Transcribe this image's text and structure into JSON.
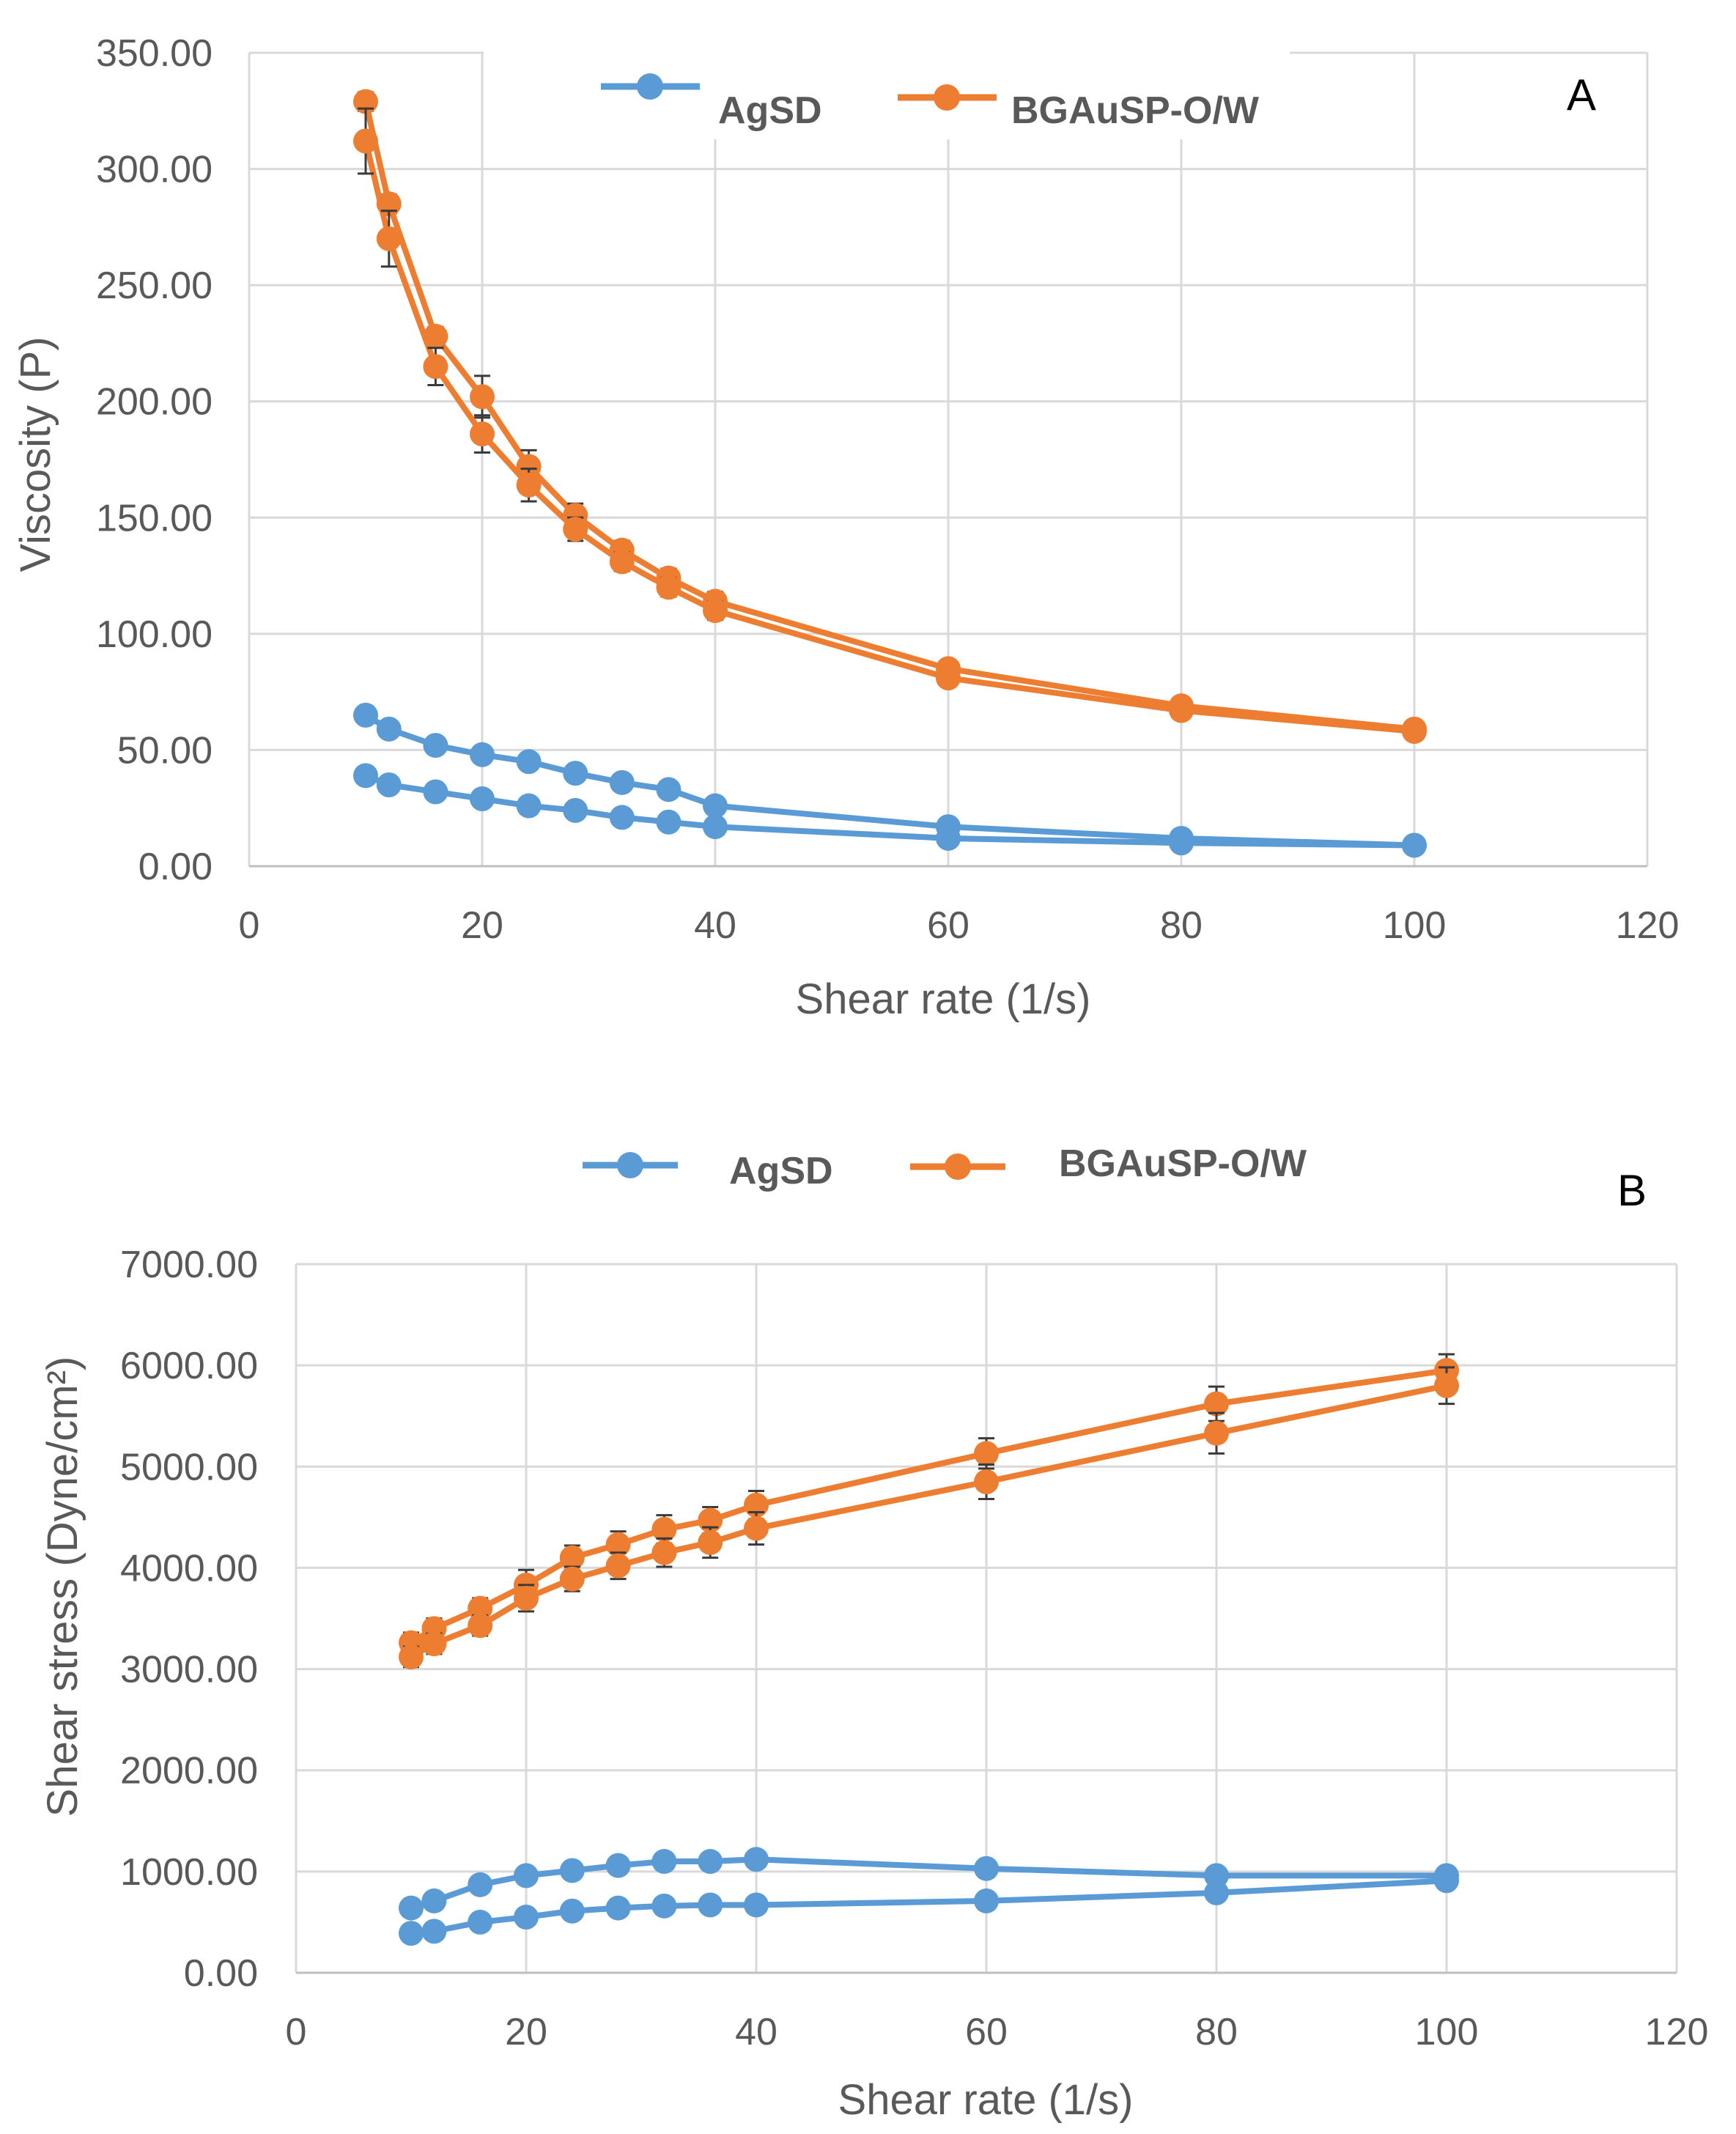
{
  "chart_data": [
    {
      "type": "line",
      "panel_label": "A",
      "xlabel": "Shear rate (1/s)",
      "ylabel": "Viscosity (P)",
      "xlim": [
        0,
        120
      ],
      "ylim": [
        0,
        350
      ],
      "x_ticks": [
        "0",
        "20",
        "40",
        "60",
        "80",
        "100",
        "120"
      ],
      "y_ticks": [
        "0.00",
        "50.00",
        "100.00",
        "150.00",
        "200.00",
        "250.00",
        "300.00",
        "350.00"
      ],
      "grid": true,
      "legend_position": "top",
      "series": [
        {
          "name": "AgSD",
          "color": "#5B9BD5",
          "x": [
            10,
            12,
            16,
            20,
            24,
            28,
            32,
            36,
            40,
            60,
            80,
            100
          ],
          "y": [
            65,
            59,
            52,
            48,
            45,
            40,
            36,
            33,
            26,
            17,
            12,
            9
          ],
          "err": [
            2,
            2,
            2,
            2,
            2,
            2,
            2,
            2,
            2,
            2,
            2,
            2
          ]
        },
        {
          "name": "AgSD",
          "color": "#5B9BD5",
          "x": [
            10,
            12,
            16,
            20,
            24,
            28,
            32,
            36,
            40,
            60,
            80,
            100
          ],
          "y": [
            39,
            35,
            32,
            29,
            26,
            24,
            21,
            19,
            17,
            12,
            10,
            9
          ],
          "err": [
            2,
            2,
            2,
            2,
            2,
            2,
            2,
            2,
            2,
            2,
            2,
            2
          ]
        },
        {
          "name": "BGAuSP-O/W",
          "color": "#ED7D31",
          "x": [
            10,
            12,
            16,
            20,
            24,
            28,
            32,
            36,
            40,
            60,
            80,
            100
          ],
          "y": [
            329,
            285,
            228,
            202,
            172,
            151,
            136,
            124,
            114,
            85,
            69,
            59
          ],
          "err": [
            4,
            4,
            4,
            9,
            7,
            5,
            4,
            4,
            4,
            3,
            3,
            3
          ]
        },
        {
          "name": "BGAuSP-O/W",
          "color": "#ED7D31",
          "x": [
            10,
            12,
            16,
            20,
            24,
            28,
            32,
            36,
            40,
            60,
            80,
            100
          ],
          "y": [
            312,
            270,
            215,
            186,
            164,
            145,
            131,
            120,
            110,
            81,
            67,
            58
          ],
          "err": [
            14,
            12,
            8,
            8,
            7,
            5,
            4,
            4,
            4,
            3,
            3,
            3
          ]
        }
      ]
    },
    {
      "type": "line",
      "panel_label": "B",
      "xlabel": "Shear rate (1/s)",
      "ylabel": "Shear stress (Dyne/cm²)",
      "xlim": [
        0,
        120
      ],
      "ylim": [
        0,
        7000
      ],
      "x_ticks": [
        "0",
        "20",
        "40",
        "60",
        "80",
        "100",
        "120"
      ],
      "y_ticks": [
        "0.00",
        "1000.00",
        "2000.00",
        "3000.00",
        "4000.00",
        "5000.00",
        "6000.00",
        "7000.00"
      ],
      "grid": true,
      "legend_position": "top",
      "series": [
        {
          "name": "AgSD",
          "color": "#5B9BD5",
          "x": [
            10,
            12,
            16,
            20,
            24,
            28,
            32,
            36,
            40,
            60,
            80,
            100
          ],
          "y": [
            640,
            710,
            870,
            960,
            1010,
            1060,
            1100,
            1100,
            1120,
            1030,
            960,
            960
          ],
          "err": [
            40,
            40,
            40,
            40,
            40,
            40,
            40,
            40,
            40,
            40,
            40,
            40
          ]
        },
        {
          "name": "AgSD",
          "color": "#5B9BD5",
          "x": [
            10,
            12,
            16,
            20,
            24,
            28,
            32,
            36,
            40,
            60,
            80,
            100
          ],
          "y": [
            390,
            410,
            500,
            550,
            610,
            640,
            660,
            670,
            670,
            710,
            790,
            910
          ],
          "err": [
            40,
            40,
            40,
            40,
            40,
            40,
            40,
            40,
            40,
            40,
            40,
            40
          ]
        },
        {
          "name": "BGAuSP-O/W",
          "color": "#ED7D31",
          "x": [
            10,
            12,
            16,
            20,
            24,
            28,
            32,
            36,
            40,
            60,
            80,
            100
          ],
          "y": [
            3260,
            3400,
            3600,
            3830,
            4100,
            4230,
            4380,
            4470,
            4620,
            5130,
            5620,
            5950
          ],
          "err": [
            100,
            100,
            100,
            150,
            120,
            130,
            140,
            130,
            140,
            150,
            170,
            160
          ]
        },
        {
          "name": "BGAuSP-O/W",
          "color": "#ED7D31",
          "x": [
            10,
            12,
            16,
            20,
            24,
            28,
            32,
            36,
            40,
            60,
            80,
            100
          ],
          "y": [
            3120,
            3250,
            3430,
            3700,
            3890,
            4020,
            4150,
            4250,
            4390,
            4850,
            5330,
            5800
          ],
          "err": [
            100,
            100,
            100,
            130,
            120,
            130,
            140,
            150,
            160,
            170,
            200,
            180
          ]
        }
      ]
    }
  ],
  "legend": {
    "series_a_label": "AgSD",
    "series_b_label": "BGAuSP-O/W"
  }
}
